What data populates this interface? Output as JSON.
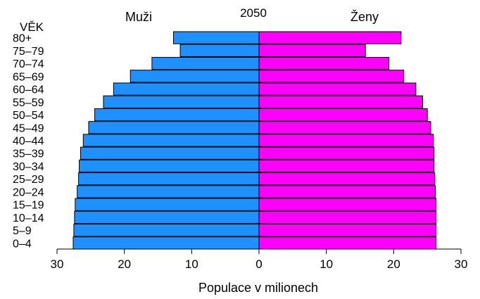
{
  "chart_data": {
    "type": "bar",
    "orientation": "horizontal-diverging",
    "title": "2050",
    "y_axis_title": "VĚK",
    "xlabel": "Populace v milionech",
    "xlim": [
      -30,
      30
    ],
    "x_tick_labels": [
      "30",
      "20",
      "10",
      "0",
      "10",
      "20",
      "30"
    ],
    "x_tick_values": [
      -30,
      -20,
      -10,
      0,
      10,
      20,
      30
    ],
    "categories": [
      "0–4",
      "5–9",
      "10–14",
      "15–19",
      "20–24",
      "25–29",
      "30–34",
      "35–39",
      "40–44",
      "45–49",
      "50–54",
      "55–59",
      "60–64",
      "65–69",
      "70–74",
      "75–79",
      "80+"
    ],
    "series": [
      {
        "name": "Muži",
        "color": "#1e90ff",
        "values": [
          27.6,
          27.5,
          27.4,
          27.3,
          27.0,
          26.8,
          26.7,
          26.5,
          26.1,
          25.3,
          24.4,
          23.1,
          21.6,
          19.1,
          15.9,
          11.7,
          12.7
        ]
      },
      {
        "name": "Ženy",
        "color": "#ff00ff",
        "values": [
          26.3,
          26.3,
          26.3,
          26.3,
          26.2,
          26.1,
          26.0,
          26.0,
          25.9,
          25.5,
          25.0,
          24.3,
          23.3,
          21.5,
          19.3,
          15.8,
          21.1
        ]
      }
    ],
    "grid": false,
    "legend": "labels above each side"
  }
}
